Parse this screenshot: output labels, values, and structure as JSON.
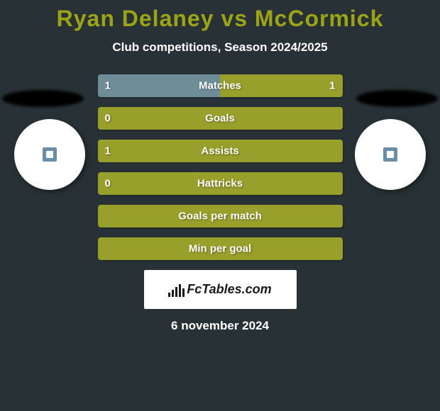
{
  "title": "Ryan Delaney vs McCormick",
  "subtitle": "Club competitions, Season 2024/2025",
  "colors": {
    "background": "#283236",
    "accent": "#9ca314",
    "player1": "#6e8d98",
    "player2": "#999f2b",
    "neutral_bar": "#999f2b",
    "text": "#ffffff"
  },
  "stats": [
    {
      "label": "Matches",
      "left_value": "1",
      "right_value": "1",
      "left_pct": 50,
      "right_pct": 50,
      "left_color": "#6e8d98",
      "right_color": "#999f2b"
    },
    {
      "label": "Goals",
      "left_value": "0",
      "right_value": "",
      "left_pct": 0,
      "right_pct": 100,
      "left_color": "#6e8d98",
      "right_color": "#999f2b"
    },
    {
      "label": "Assists",
      "left_value": "1",
      "right_value": "",
      "left_pct": 100,
      "right_pct": 0,
      "left_color": "#999f2b",
      "right_color": "#999f2b"
    },
    {
      "label": "Hattricks",
      "left_value": "0",
      "right_value": "",
      "left_pct": 0,
      "right_pct": 100,
      "left_color": "#6e8d98",
      "right_color": "#999f2b"
    },
    {
      "label": "Goals per match",
      "left_value": "",
      "right_value": "",
      "left_pct": 0,
      "right_pct": 100,
      "left_color": "#6e8d98",
      "right_color": "#999f2b"
    },
    {
      "label": "Min per goal",
      "left_value": "",
      "right_value": "",
      "left_pct": 0,
      "right_pct": 100,
      "left_color": "#6e8d98",
      "right_color": "#999f2b"
    }
  ],
  "branding": "FcTables.com",
  "date": "6 november 2024"
}
